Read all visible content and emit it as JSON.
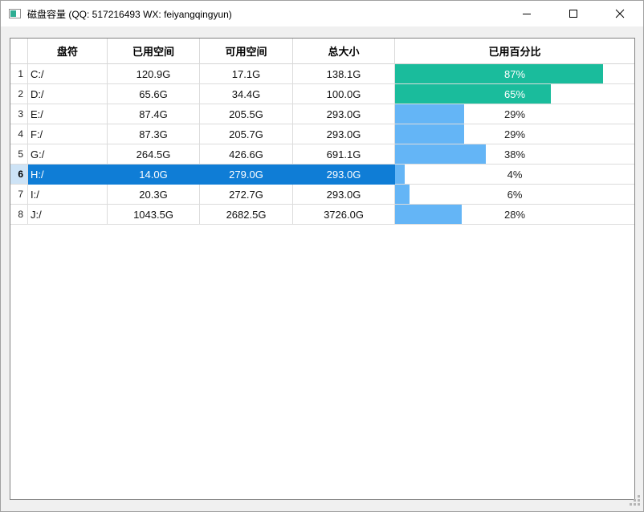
{
  "window": {
    "title": "磁盘容量 (QQ: 517216493 WX: feiyangqingyun)",
    "icon": "disk-capacity-progress-icon",
    "controls": {
      "minimize": "minimize",
      "maximize": "maximize",
      "close": "close"
    }
  },
  "colors": {
    "green_bar": "#1abc9c",
    "blue_bar": "#64b5f6",
    "selection": "#0f7dd6",
    "selection_row_header": "#cde3f6",
    "bar_label_light": "#ffffff",
    "bar_label_dark": "#222222"
  },
  "table": {
    "columns": [
      "盘符",
      "已用空间",
      "可用空间",
      "总大小",
      "已用百分比"
    ],
    "rows": [
      {
        "num": "1",
        "drive": "C:/",
        "used": "120.9G",
        "free": "17.1G",
        "total": "138.1G",
        "percent": 87,
        "percent_label": "87%",
        "bar": "green_bar",
        "label_on_bar": true,
        "selected": false
      },
      {
        "num": "2",
        "drive": "D:/",
        "used": "65.6G",
        "free": "34.4G",
        "total": "100.0G",
        "percent": 65,
        "percent_label": "65%",
        "bar": "green_bar",
        "label_on_bar": true,
        "selected": false
      },
      {
        "num": "3",
        "drive": "E:/",
        "used": "87.4G",
        "free": "205.5G",
        "total": "293.0G",
        "percent": 29,
        "percent_label": "29%",
        "bar": "blue_bar",
        "label_on_bar": false,
        "selected": false
      },
      {
        "num": "4",
        "drive": "F:/",
        "used": "87.3G",
        "free": "205.7G",
        "total": "293.0G",
        "percent": 29,
        "percent_label": "29%",
        "bar": "blue_bar",
        "label_on_bar": false,
        "selected": false
      },
      {
        "num": "5",
        "drive": "G:/",
        "used": "264.5G",
        "free": "426.6G",
        "total": "691.1G",
        "percent": 38,
        "percent_label": "38%",
        "bar": "blue_bar",
        "label_on_bar": false,
        "selected": false
      },
      {
        "num": "6",
        "drive": "H:/",
        "used": "14.0G",
        "free": "279.0G",
        "total": "293.0G",
        "percent": 4,
        "percent_label": "4%",
        "bar": "blue_bar",
        "label_on_bar": false,
        "selected": true
      },
      {
        "num": "7",
        "drive": "I:/",
        "used": "20.3G",
        "free": "272.7G",
        "total": "293.0G",
        "percent": 6,
        "percent_label": "6%",
        "bar": "blue_bar",
        "label_on_bar": false,
        "selected": false
      },
      {
        "num": "8",
        "drive": "J:/",
        "used": "1043.5G",
        "free": "2682.5G",
        "total": "3726.0G",
        "percent": 28,
        "percent_label": "28%",
        "bar": "blue_bar",
        "label_on_bar": false,
        "selected": false
      }
    ]
  }
}
